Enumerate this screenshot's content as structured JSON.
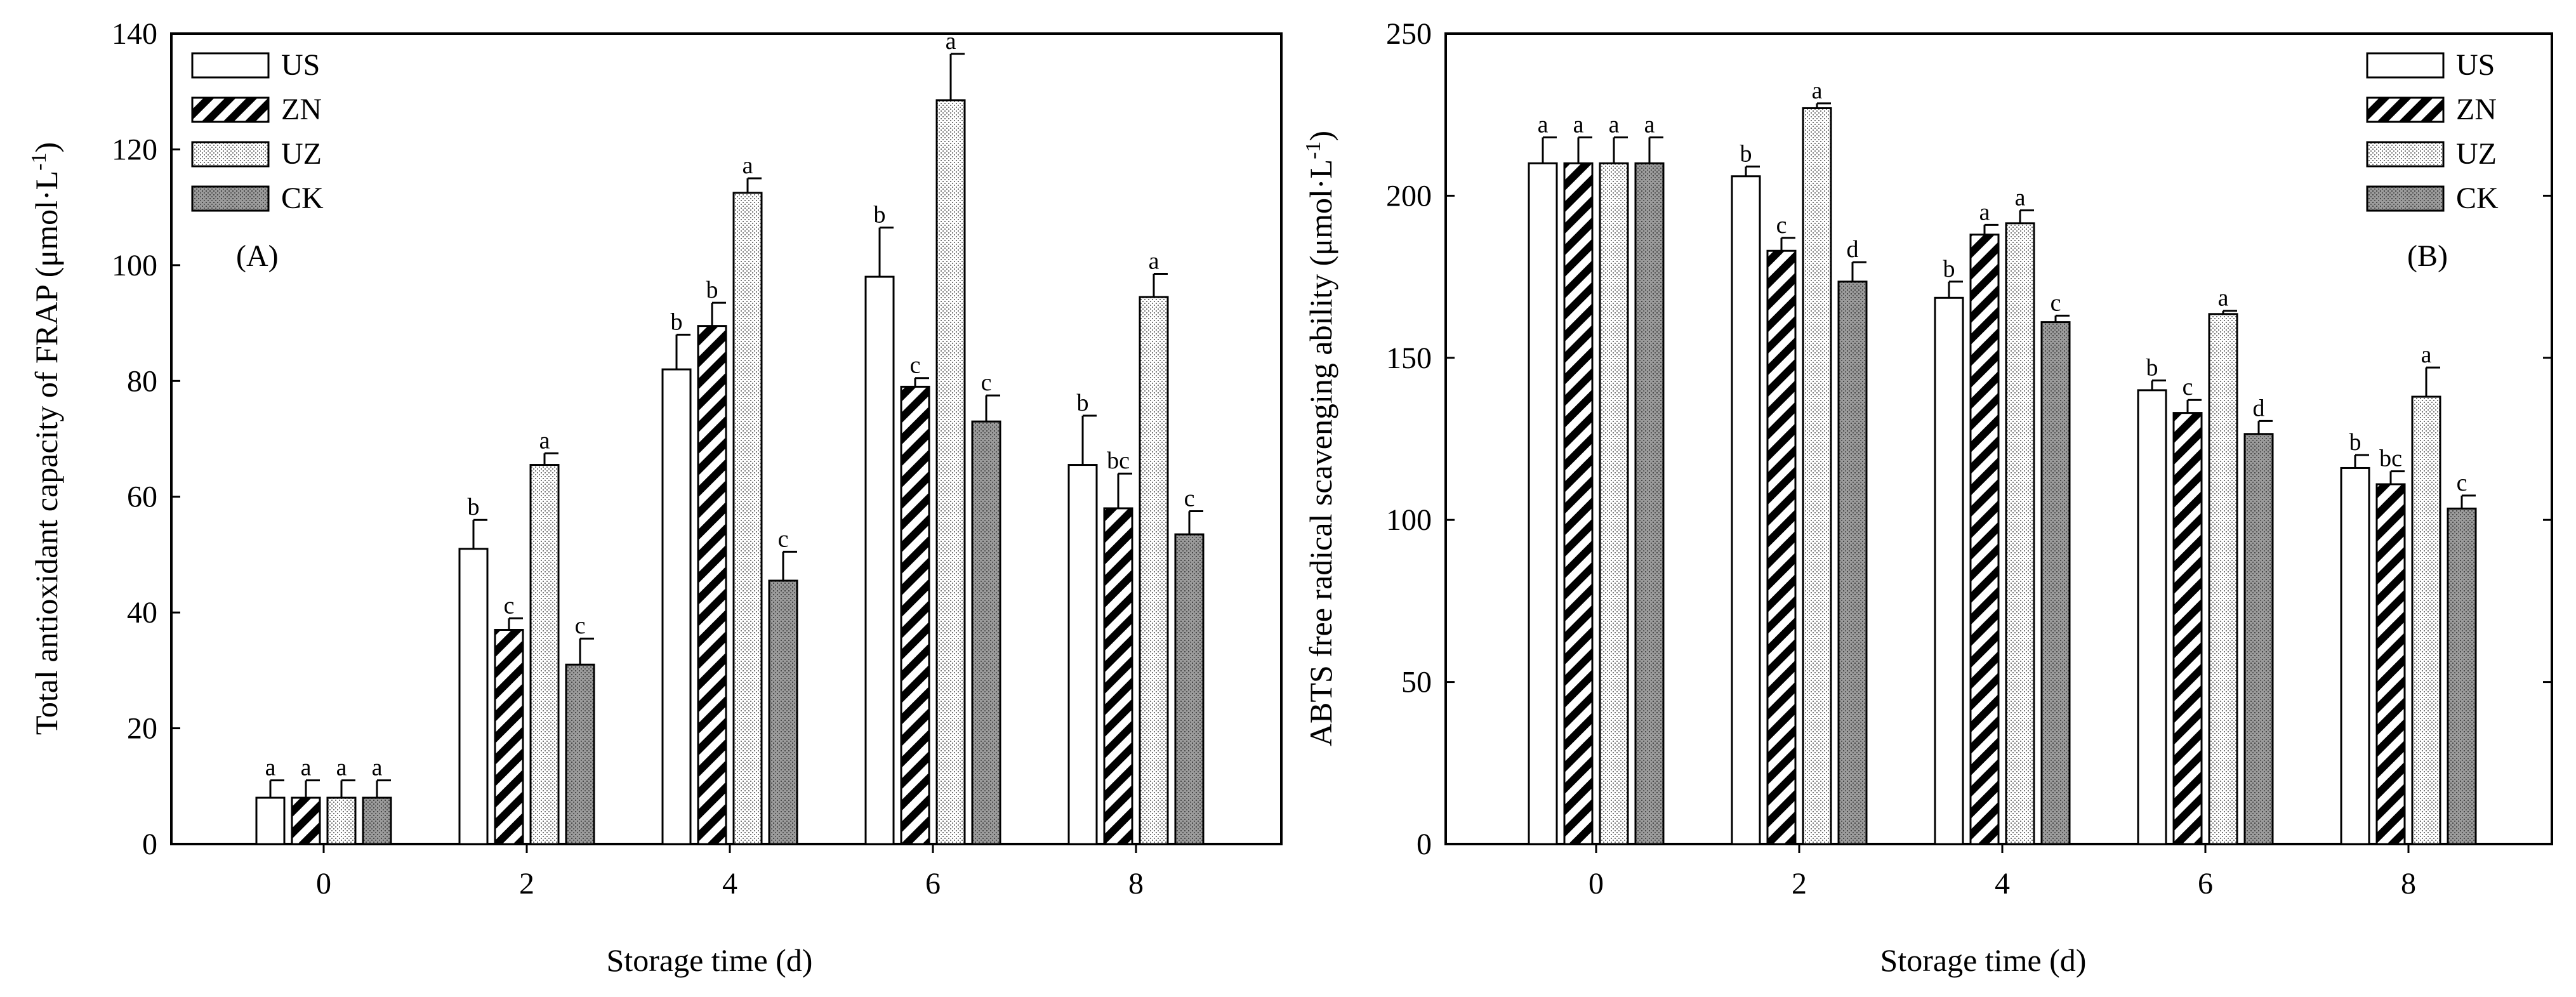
{
  "chart_data": [
    {
      "type": "bar",
      "tag": "(A)",
      "xlabel": "Storage time (d)",
      "ylabel_main": "Total antioxidant capacity of FRAP (",
      "ylabel_unit": "μmol·L",
      "ylabel_sup": "-1",
      "ylabel_end": ")",
      "ylim": [
        0,
        140
      ],
      "yticks": [
        "0",
        "20",
        "40",
        "60",
        "80",
        "100",
        "120",
        "140"
      ],
      "categories": [
        "0",
        "2",
        "4",
        "6",
        "8"
      ],
      "legend_position": "top-left",
      "series": [
        {
          "name": "US",
          "values": [
            8,
            51,
            82,
            98,
            65.5
          ],
          "errors": [
            3,
            5,
            6,
            8.5,
            8.5
          ],
          "letters": [
            "a",
            "b",
            "b",
            "b",
            "b"
          ]
        },
        {
          "name": "ZN",
          "values": [
            8,
            37,
            89.5,
            79,
            58
          ],
          "errors": [
            3,
            2,
            4,
            1.5,
            6
          ],
          "letters": [
            "a",
            "c",
            "b",
            "c",
            "bc"
          ]
        },
        {
          "name": "UZ",
          "values": [
            8,
            65.5,
            112.5,
            128.5,
            94.5
          ],
          "errors": [
            3,
            2,
            2.5,
            8,
            4
          ],
          "letters": [
            "a",
            "a",
            "a",
            "a",
            "a"
          ]
        },
        {
          "name": "CK",
          "values": [
            8,
            31,
            45.5,
            73,
            53.5
          ],
          "errors": [
            3,
            4.5,
            5,
            4.5,
            4
          ],
          "letters": [
            "a",
            "c",
            "c",
            "c",
            "c"
          ]
        }
      ]
    },
    {
      "type": "bar",
      "tag": "(B)",
      "xlabel": "Storage time (d)",
      "ylabel_main": "ABTS free radical scavenging ability (",
      "ylabel_unit": "μmol·L",
      "ylabel_sup": "-1",
      "ylabel_end": ")",
      "ylim": [
        0,
        250
      ],
      "yticks": [
        "0",
        "50",
        "100",
        "150",
        "200",
        "250"
      ],
      "categories": [
        "0",
        "2",
        "4",
        "6",
        "8"
      ],
      "legend_position": "top-right",
      "series": [
        {
          "name": "US",
          "values": [
            210,
            206,
            168.5,
            140,
            116
          ],
          "errors": [
            8,
            3,
            5,
            3,
            4
          ],
          "letters": [
            "a",
            "b",
            "b",
            "b",
            "b"
          ]
        },
        {
          "name": "ZN",
          "values": [
            210,
            183,
            188,
            133,
            111
          ],
          "errors": [
            8,
            4,
            3,
            4,
            4
          ],
          "letters": [
            "a",
            "c",
            "a",
            "c",
            "bc"
          ]
        },
        {
          "name": "UZ",
          "values": [
            210,
            227,
            191.5,
            163.5,
            138
          ],
          "errors": [
            8,
            1.5,
            4,
            1,
            9
          ],
          "letters": [
            "a",
            "a",
            "a",
            "a",
            "a"
          ]
        },
        {
          "name": "CK",
          "values": [
            210,
            173.5,
            161,
            126.5,
            103.5
          ],
          "errors": [
            8,
            6,
            2,
            4,
            4
          ],
          "letters": [
            "a",
            "d",
            "c",
            "d",
            "c"
          ]
        }
      ]
    }
  ]
}
